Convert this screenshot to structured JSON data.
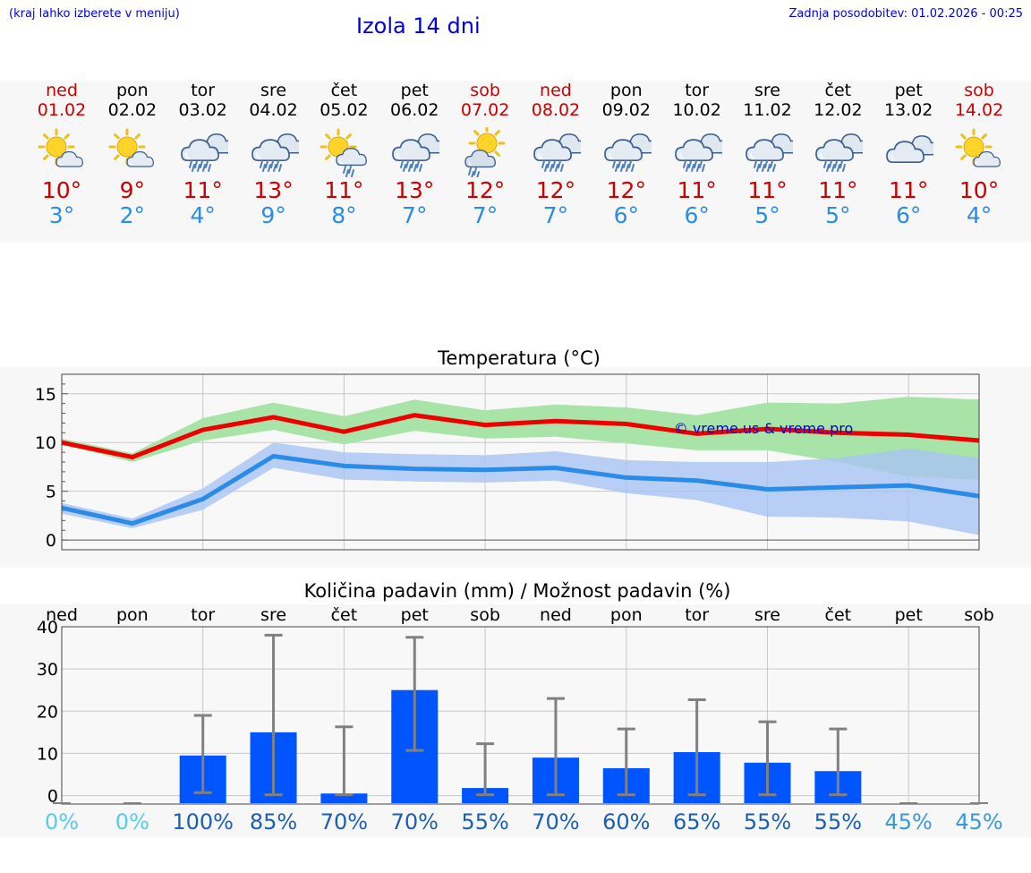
{
  "header": {
    "hint": "(kraj lahko izberete v meniju)",
    "title": "Izola 14 dni",
    "updated": "Zadnja posodobitev: 01.02.2026 - 00:25"
  },
  "days": [
    {
      "name": "ned",
      "date": "01.02",
      "icon": "sun-cloud-icon",
      "tmax": "10°",
      "tmin": "3°",
      "weekend": true
    },
    {
      "name": "pon",
      "date": "02.02",
      "icon": "sun-cloud-icon",
      "tmax": "9°",
      "tmin": "2°",
      "weekend": false
    },
    {
      "name": "tor",
      "date": "03.02",
      "icon": "rain-cloud-icon",
      "tmax": "11°",
      "tmin": "4°",
      "weekend": false
    },
    {
      "name": "sre",
      "date": "04.02",
      "icon": "rain-cloud-icon",
      "tmax": "13°",
      "tmin": "9°",
      "weekend": false
    },
    {
      "name": "čet",
      "date": "05.02",
      "icon": "sun-rain-icon",
      "tmax": "11°",
      "tmin": "8°",
      "weekend": false
    },
    {
      "name": "pet",
      "date": "06.02",
      "icon": "rain-cloud-icon",
      "tmax": "13°",
      "tmin": "7°",
      "weekend": false
    },
    {
      "name": "sob",
      "date": "07.02",
      "icon": "sun-shower-icon",
      "tmax": "12°",
      "tmin": "7°",
      "weekend": true
    },
    {
      "name": "ned",
      "date": "08.02",
      "icon": "rain-cloud-icon",
      "tmax": "12°",
      "tmin": "7°",
      "weekend": true
    },
    {
      "name": "pon",
      "date": "09.02",
      "icon": "rain-cloud-icon",
      "tmax": "12°",
      "tmin": "6°",
      "weekend": false
    },
    {
      "name": "tor",
      "date": "10.02",
      "icon": "rain-cloud-icon",
      "tmax": "11°",
      "tmin": "6°",
      "weekend": false
    },
    {
      "name": "sre",
      "date": "11.02",
      "icon": "rain-cloud-icon",
      "tmax": "11°",
      "tmin": "5°",
      "weekend": false
    },
    {
      "name": "čet",
      "date": "12.02",
      "icon": "rain-cloud-icon",
      "tmax": "11°",
      "tmin": "5°",
      "weekend": false
    },
    {
      "name": "pet",
      "date": "13.02",
      "icon": "cloud-icon",
      "tmax": "11°",
      "tmin": "6°",
      "weekend": false
    },
    {
      "name": "sob",
      "date": "14.02",
      "icon": "sun-cloud-icon",
      "tmax": "10°",
      "tmin": "4°",
      "weekend": true
    }
  ],
  "colors": {
    "weekend": "#cc0000",
    "max": "#ee0000",
    "min": "#2a8ce6",
    "maxBand": "#a8e4a8",
    "minBand": "#a9c3f3",
    "bar": "#0055ff",
    "whisker": "#808080",
    "watermark": "#0000dd"
  },
  "chart_data": [
    {
      "type": "line",
      "title": "Temperatura (°C)",
      "x": [
        0,
        1,
        2,
        3,
        4,
        5,
        6,
        7,
        8,
        9,
        10,
        11,
        12,
        13
      ],
      "ylim": [
        -1,
        17
      ],
      "yticks": [
        "0",
        "5",
        "10",
        "15"
      ],
      "watermark": "© vreme.us & vreme.pro",
      "series": [
        {
          "name": "max",
          "values": [
            10,
            8.5,
            11.3,
            12.6,
            11.1,
            12.8,
            11.8,
            12.2,
            11.9,
            10.9,
            11.4,
            11.0,
            10.8,
            10.2
          ],
          "band_low": [
            9.8,
            8.0,
            10.2,
            11.3,
            9.8,
            11.2,
            10.4,
            10.6,
            9.9,
            9.2,
            9.2,
            8.0,
            6.5,
            6.2
          ],
          "band_high": [
            10.4,
            8.9,
            12.5,
            14.1,
            12.7,
            14.4,
            13.3,
            13.9,
            13.6,
            12.8,
            14.1,
            14.0,
            14.7,
            14.4
          ]
        },
        {
          "name": "min",
          "values": [
            3.3,
            1.7,
            4.2,
            8.6,
            7.6,
            7.3,
            7.2,
            7.4,
            6.4,
            6.1,
            5.2,
            5.4,
            5.6,
            4.5
          ],
          "band_low": [
            2.7,
            1.2,
            3.1,
            7.4,
            6.2,
            6.0,
            5.9,
            6.1,
            4.8,
            4.1,
            2.4,
            2.3,
            1.9,
            0.5
          ],
          "band_high": [
            3.8,
            2.2,
            5.3,
            10.0,
            9.0,
            8.8,
            8.7,
            9.1,
            8.2,
            8.0,
            8.0,
            8.4,
            9.4,
            8.4
          ]
        }
      ]
    },
    {
      "type": "bar",
      "title": "Količina padavin (mm) / Možnost padavin (%)",
      "categories": [
        "ned",
        "pon",
        "tor",
        "sre",
        "čet",
        "pet",
        "sob",
        "ned",
        "pon",
        "tor",
        "sre",
        "čet",
        "pet",
        "sob"
      ],
      "values": [
        0,
        0,
        9.5,
        15,
        0.5,
        25,
        1.8,
        9,
        6.5,
        10.3,
        7.8,
        5.8,
        0,
        0
      ],
      "whisker_low": [
        0,
        0,
        0.5,
        0,
        0,
        10.5,
        0,
        0,
        0,
        0,
        0,
        0,
        0,
        0
      ],
      "whisker_high": [
        0,
        0,
        19,
        38,
        16.3,
        37.5,
        12.3,
        23,
        15.8,
        22.7,
        17.5,
        15.8,
        0,
        0
      ],
      "ylim": [
        -2,
        40
      ],
      "yticks": [
        "0",
        "10",
        "20",
        "30",
        "40"
      ],
      "probabilities": [
        "0%",
        "0%",
        "100%",
        "85%",
        "70%",
        "70%",
        "55%",
        "70%",
        "60%",
        "65%",
        "55%",
        "55%",
        "45%",
        "45%"
      ],
      "probability_colors": [
        "#55ccee",
        "#55ccee",
        "#1a5fb4",
        "#1a5fb4",
        "#1a5fb4",
        "#1a5fb4",
        "#1a5fb4",
        "#1a5fb4",
        "#1a5fb4",
        "#1a5fb4",
        "#1a5fb4",
        "#1a5fb4",
        "#3a9ad9",
        "#3a9ad9"
      ]
    }
  ]
}
